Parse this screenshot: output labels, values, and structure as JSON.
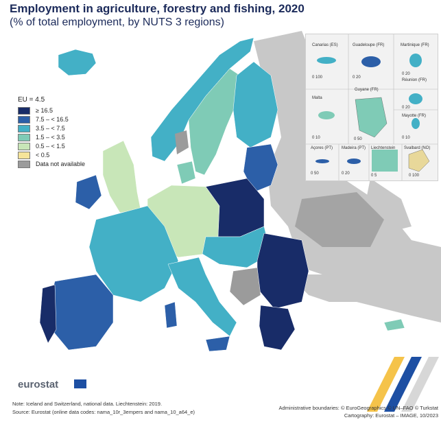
{
  "header": {
    "title": "Employment in agriculture, forestry and fishing, 2020",
    "subtitle": "(% of total employment, by NUTS 3 regions)"
  },
  "legend": {
    "eu_value": "EU = 4.5",
    "items": [
      {
        "label": "≥ 16.5",
        "color": "#182c68"
      },
      {
        "label": "7.5 – < 16.5",
        "color": "#2c5fa8"
      },
      {
        "label": "3.5 – < 7.5",
        "color": "#43b0c6"
      },
      {
        "label": "1.5 – < 3.5",
        "color": "#7fcbb6"
      },
      {
        "label": "0.5 – < 1.5",
        "color": "#c8e6b8"
      },
      {
        "label": "< 0.5",
        "color": "#f6e49a"
      },
      {
        "label": "Data not available",
        "color": "#9b9b9b"
      }
    ]
  },
  "insets": {
    "canarias": "Canarias (ES)",
    "guadeloupe": "Guadeloupe (FR)",
    "martinique": "Martinique (FR)",
    "reunion": "Réunion (FR)",
    "guyane": "Guyane (FR)",
    "malta": "Malta",
    "mayotte": "Mayotte (FR)",
    "acores": "Açores (PT)",
    "madeira": "Madeira (PT)",
    "liechtenstein": "Liechtenstein",
    "svalbard": "Svalbard (NO)",
    "scale_canarias": "0  100",
    "scale_guadeloupe": "0  20",
    "scale_martinique": "0  20",
    "scale_reunion": "0  20",
    "scale_guyane": "0 50",
    "scale_malta": "0  10",
    "scale_mayotte": "0  10",
    "scale_acores": "0  50",
    "scale_madeira": "0  20",
    "scale_liechtenstein": "0  5",
    "scale_svalbard": "0 100"
  },
  "footer": {
    "logo": "eurostat",
    "note": "Note: Iceland and Switzerland, national data. Liechtenstein: 2019.",
    "source": "Source: Eurostat (online data codes: nama_10r_3empers and nama_10_a64_e)",
    "boundaries": "Administrative boundaries: © EuroGeographics © UN–FAO © Turkstat",
    "cartography": "Cartography: Eurostat – IMAGE, 10/2023"
  }
}
